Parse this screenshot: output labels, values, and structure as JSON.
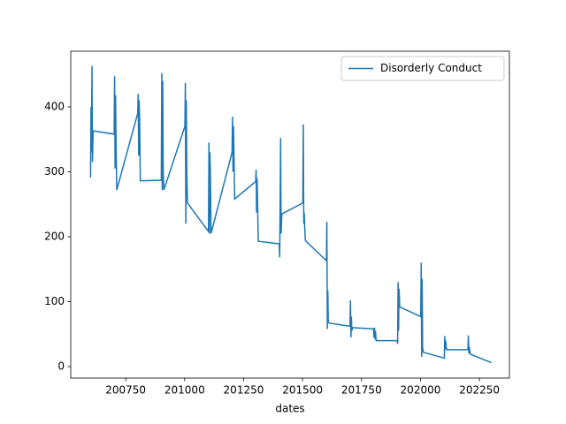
{
  "chart_data": {
    "type": "line",
    "xlabel": "dates",
    "x": [
      200601,
      200603,
      200605,
      200607,
      200609,
      200612,
      200701,
      200703,
      200705,
      200707,
      200709,
      200712,
      200801,
      200803,
      200805,
      200807,
      200809,
      200812,
      200901,
      200903,
      200905,
      200907,
      200909,
      200912,
      201001,
      201003,
      201005,
      201007,
      201009,
      201012,
      201101,
      201103,
      201105,
      201107,
      201109,
      201112,
      201201,
      201203,
      201205,
      201207,
      201209,
      201212,
      201301,
      201303,
      201305,
      201307,
      201309,
      201312,
      201401,
      201403,
      201405,
      201407,
      201409,
      201412,
      201501,
      201503,
      201505,
      201507,
      201509,
      201512,
      201601,
      201603,
      201605,
      201607,
      201609,
      201612,
      201701,
      201703,
      201705,
      201707,
      201709,
      201712,
      201801,
      201803,
      201805,
      201807,
      201809,
      201812,
      201901,
      201903,
      201905,
      201907,
      201909,
      201912,
      202001,
      202003,
      202005,
      202007,
      202009,
      202012,
      202101,
      202103,
      202105,
      202107,
      202109,
      202112,
      202201,
      202203,
      202205,
      202207,
      202209,
      202212,
      202301
    ],
    "series": [
      {
        "name": "Disorderly Conduct",
        "color": "#1f77b4",
        "values": [
          291,
          400,
          330,
          463,
          315,
          363,
          358,
          447,
          305,
          418,
          350,
          272,
          390,
          420,
          325,
          410,
          380,
          286,
          287,
          452,
          272,
          440,
          300,
          272,
          370,
          437,
          220,
          410,
          300,
          252,
          208,
          345,
          205,
          330,
          300,
          205,
          330,
          385,
          300,
          370,
          330,
          258,
          285,
          303,
          237,
          290,
          260,
          193,
          189,
          168,
          256,
          352,
          205,
          235,
          252,
          373,
          220,
          237,
          215,
          194,
          163,
          223,
          58,
          117,
          70,
          67,
          62,
          102,
          45,
          77,
          55,
          60,
          58,
          45,
          60,
          42,
          55,
          40,
          40,
          35,
          130,
          55,
          120,
          92,
          77,
          160,
          15,
          135,
          30,
          22,
          13,
          47,
          26,
          40,
          30,
          26,
          26,
          48,
          20,
          30,
          25,
          19,
          6
        ]
      }
    ],
    "xlim": [
      200517,
      202377
    ],
    "ylim": [
      -17.7,
      485.7
    ],
    "xticks": [
      200750,
      201000,
      201250,
      201500,
      201750,
      202000,
      202250
    ],
    "yticks": [
      0,
      100,
      200,
      300,
      400
    ],
    "legend": "upper right"
  }
}
